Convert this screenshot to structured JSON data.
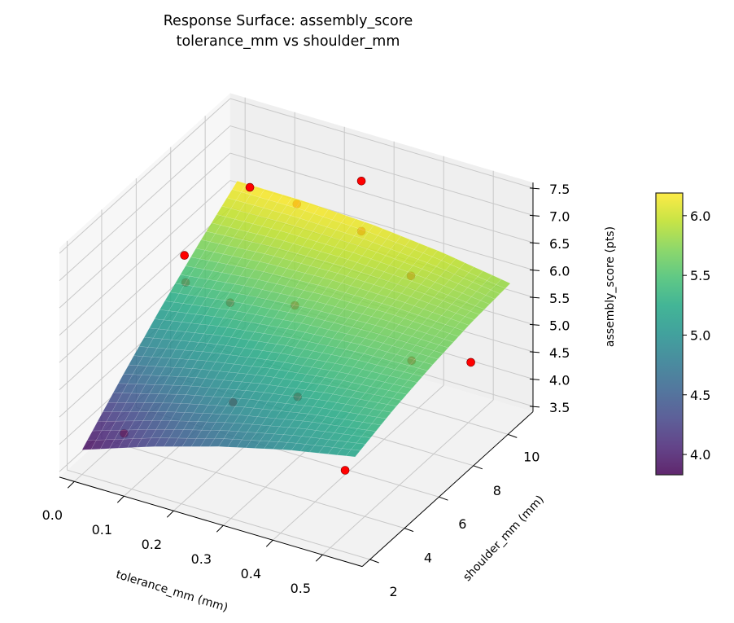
{
  "chart_data": {
    "type": "surface3d",
    "title": [
      "Response Surface: assembly_score",
      "tolerance_mm vs shoulder_mm"
    ],
    "xlabel": "tolerance_mm (mm)",
    "ylabel": "shoulder_mm (mm)",
    "zlabel": "assembly_score (pts)",
    "xlim": [
      -0.03,
      0.58
    ],
    "ylim": [
      1.55,
      11.45
    ],
    "zlim": [
      3.4,
      7.6
    ],
    "xticks": [
      "0.0",
      "0.1",
      "0.2",
      "0.3",
      "0.4",
      "0.5"
    ],
    "yticks": [
      "2",
      "4",
      "6",
      "8",
      "10"
    ],
    "zticks": [
      "3.5",
      "4.0",
      "4.5",
      "5.0",
      "5.5",
      "6.0",
      "6.5",
      "7.0",
      "7.5"
    ],
    "grid": true,
    "colormap": "viridis",
    "surface": {
      "x": [
        0.0,
        0.1375,
        0.275,
        0.4125,
        0.55
      ],
      "y": [
        2,
        4.25,
        6.5,
        8.75,
        11
      ],
      "z": [
        [
          3.85,
          4.28,
          4.65,
          4.96,
          5.2
        ],
        [
          4.51,
          4.83,
          5.09,
          5.29,
          5.43
        ],
        [
          5.13,
          5.34,
          5.49,
          5.58,
          5.6
        ],
        [
          5.69,
          5.79,
          5.83,
          5.81,
          5.73
        ],
        [
          6.2,
          6.19,
          6.13,
          6.0,
          5.8
        ]
      ]
    },
    "points": {
      "color": "#ff0000",
      "x": [
        0.05,
        0.2,
        0.33,
        0.53,
        0.0,
        0.05,
        0.09,
        0.06,
        0.25,
        0.12,
        0.25,
        0.35,
        0.22,
        0.49,
        0.54
      ],
      "y": [
        3,
        5,
        5,
        2,
        8,
        6.5,
        8,
        10,
        11,
        11,
        11,
        11,
        8,
        7,
        9
      ],
      "z": [
        4.0,
        4.4,
        4.85,
        4.9,
        5.2,
        6.26,
        5.07,
        6.53,
        6.87,
        6.1,
        5.95,
        5.4,
        5.37,
        5.37,
        4.9
      ]
    },
    "colorbar": {
      "range": [
        3.83,
        6.19
      ],
      "ticks": [
        "4.0",
        "4.5",
        "5.0",
        "5.5",
        "6.0"
      ]
    }
  }
}
